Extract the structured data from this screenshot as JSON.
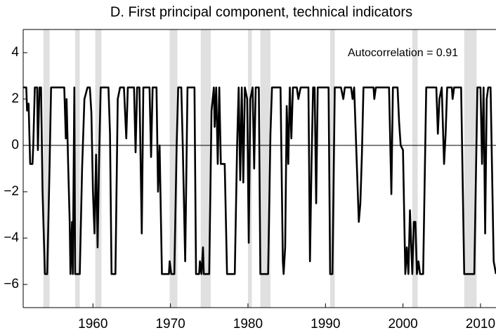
{
  "chart_data": {
    "type": "line",
    "title": "D. First principal component, technical indicators",
    "annotation": "Autocorrelation = 0.91",
    "color": "#000000",
    "shade_color": "#e0e0e0",
    "hline": 0,
    "xlim": [
      1951,
      2012
    ],
    "ylim": [
      -7,
      5
    ],
    "xticks": [
      1960,
      1970,
      1980,
      1990,
      2000,
      2010
    ],
    "yticks": [
      {
        "value": -6,
        "label": "−6"
      },
      {
        "value": -4,
        "label": "−4"
      },
      {
        "value": -2,
        "label": "−2"
      },
      0,
      2,
      4
    ],
    "shaded": [
      [
        1953.6,
        1954.4
      ],
      [
        1957.7,
        1958.3
      ],
      [
        1960.3,
        1961.1
      ],
      [
        1969.9,
        1970.9
      ],
      [
        1973.9,
        1975.2
      ],
      [
        1980.0,
        1980.5
      ],
      [
        1981.6,
        1982.9
      ],
      [
        1990.6,
        1991.2
      ],
      [
        2001.2,
        2001.9
      ],
      [
        2007.9,
        2009.5
      ]
    ],
    "x": [
      1951.0,
      1951.4,
      1951.5,
      1951.7,
      1951.9,
      1952.2,
      1952.3,
      1952.5,
      1952.8,
      1952.9,
      1953.1,
      1953.3,
      1953.5,
      1953.8,
      1954.1,
      1954.4,
      1954.6,
      1956.3,
      1956.5,
      1956.6,
      1956.8,
      1957.0,
      1957.1,
      1957.3,
      1957.4,
      1957.6,
      1957.7,
      1958.3,
      1958.6,
      1958.9,
      1959.3,
      1959.6,
      1959.8,
      1960.0,
      1960.2,
      1960.4,
      1960.6,
      1960.8,
      1961.0,
      1962.0,
      1962.2,
      1962.4,
      1962.9,
      1963.2,
      1963.5,
      1964.0,
      1964.3,
      1964.5,
      1965.3,
      1965.5,
      1965.7,
      1966.0,
      1966.3,
      1966.5,
      1967.3,
      1967.5,
      1967.7,
      1968.2,
      1968.4,
      1968.6,
      1968.9,
      1969.8,
      1969.9,
      1970.1,
      1970.5,
      1970.8,
      1971.0,
      1971.4,
      1971.6,
      1971.9,
      1972.2,
      1973.1,
      1973.3,
      1973.7,
      1973.8,
      1974.0,
      1974.2,
      1974.3,
      1975.0,
      1975.3,
      1975.6,
      1975.7,
      1975.9,
      1976.1,
      1976.3,
      1976.5,
      1977.0,
      1977.3,
      1978.3,
      1978.6,
      1978.8,
      1979.0,
      1979.2,
      1979.4,
      1979.6,
      1979.9,
      1980.1,
      1980.3,
      1980.6,
      1980.8,
      1981.0,
      1981.4,
      1981.6,
      1982.6,
      1982.9,
      1983.1,
      1984.2,
      1984.5,
      1984.6,
      1984.8,
      1985.0,
      1985.2,
      1985.4,
      1985.6,
      1985.8,
      1986.3,
      1986.5,
      1986.8,
      1987.8,
      1988.0,
      1988.2,
      1988.4,
      1988.6,
      1988.8,
      1989.0,
      1990.4,
      1990.6,
      1990.9,
      1991.2,
      1992.0,
      1992.3,
      1992.5,
      1993.3,
      1993.5,
      1993.7,
      1994.3,
      1994.5,
      1994.7,
      1994.9,
      1996.2,
      1996.3,
      1996.5,
      1998.2,
      1998.5,
      1998.7,
      1999.3,
      1999.5,
      1999.7,
      2000.0,
      2000.3,
      2000.5,
      2000.7,
      2000.9,
      2001.2,
      2001.4,
      2001.6,
      2001.8,
      2002.0,
      2002.2,
      2002.6,
      2003.0,
      2004.3,
      2004.5,
      2004.7,
      2005.0,
      2005.3,
      2005.5,
      2005.7,
      2006.3,
      2006.4,
      2006.6,
      2007.5,
      2007.9,
      2009.2,
      2009.6,
      2010.0,
      2010.2,
      2010.4,
      2010.6,
      2010.8,
      2011.0,
      2011.3,
      2011.7,
      2012.0
    ],
    "values": [
      2.5,
      2.5,
      1.5,
      1.8,
      -0.8,
      -0.8,
      0,
      2.5,
      2.5,
      -0.2,
      2.5,
      2.5,
      -2,
      -5.55,
      -5.55,
      -1,
      2.5,
      2.5,
      0.3,
      2,
      -0.8,
      -3.3,
      -5.55,
      -3.3,
      -5.55,
      2.5,
      -5.55,
      -5.55,
      -1,
      2,
      2.5,
      2.5,
      1.4,
      -2,
      -3.8,
      -0.4,
      -4.4,
      -0.5,
      2.5,
      2.5,
      0.5,
      -5.55,
      -5.55,
      2,
      2.5,
      2.5,
      0.3,
      2.5,
      2.5,
      -0.3,
      2.5,
      2.5,
      -3.8,
      2.5,
      2.5,
      -0.5,
      2.5,
      2.5,
      -2,
      0,
      -5.55,
      -5.55,
      -5,
      -5.55,
      -5.55,
      0,
      2.5,
      2.5,
      -0.2,
      -5,
      2.5,
      2.5,
      -5.55,
      -5.55,
      -5,
      -5.55,
      -4.4,
      -5.55,
      -5.55,
      1.5,
      2.5,
      0.8,
      2.5,
      -0.8,
      2.5,
      -0.8,
      -0.8,
      -5.55,
      -5.55,
      0,
      2.5,
      -1.5,
      2.5,
      -1.6,
      2.5,
      2,
      -4.2,
      2,
      2.5,
      -1,
      2.5,
      2.5,
      -5.55,
      -5.55,
      0.5,
      2.5,
      2.5,
      -5,
      -5.55,
      -4.4,
      1.7,
      -0.8,
      2.5,
      0.3,
      2.5,
      2.5,
      2,
      2.5,
      2.5,
      -5,
      -0.8,
      2.5,
      2.5,
      -2.5,
      2.5,
      2.5,
      -5.55,
      -5.55,
      2.5,
      2.5,
      2,
      2.5,
      2.5,
      2,
      2.5,
      -3.3,
      -2.5,
      -0.4,
      2.5,
      2.5,
      2,
      2.5,
      2.5,
      -2.1,
      2.5,
      2.5,
      1,
      0,
      -0.2,
      -5.55,
      -4.4,
      -5.55,
      -2.8,
      -5.55,
      -3.3,
      -3.3,
      -5.55,
      -5,
      -5.55,
      -5.55,
      2.5,
      2.5,
      0.5,
      2,
      2.5,
      -0.8,
      0.5,
      2.5,
      2.5,
      2,
      2.5,
      2.5,
      -5.55,
      -5.55,
      2.5,
      2.5,
      -0.8,
      2.5,
      -3.8,
      2,
      2.5,
      2.5,
      -5,
      -5.55
    ]
  }
}
